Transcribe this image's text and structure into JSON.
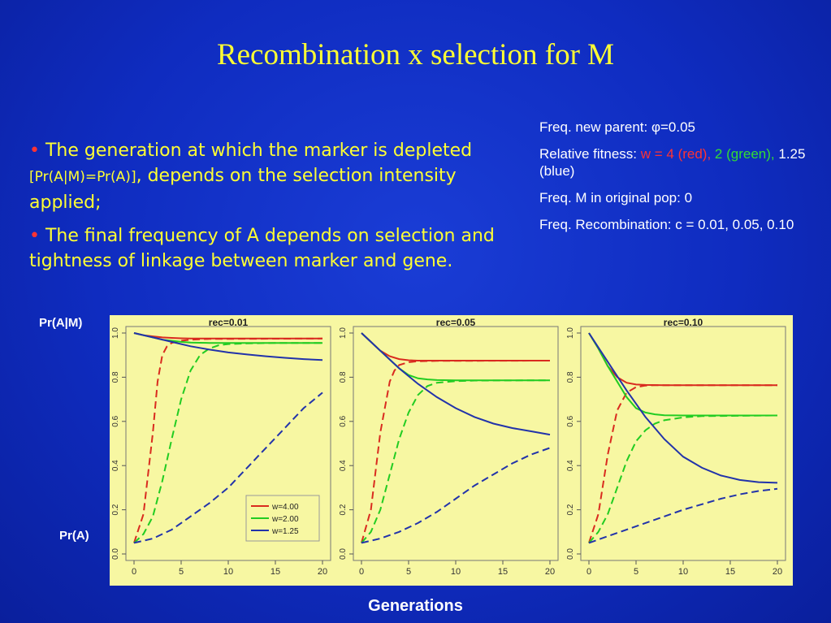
{
  "title": "Recombination x selection for M",
  "bullets": {
    "b1_a": "The generation at which the marker is depleted ",
    "b1_small": "[Pr(A|M)=Pr(A)]",
    "b1_b": ", depends on the selection intensity applied;",
    "b2": "The final frequency of A depends on selection and tightness of linkage between marker and gene.",
    "marker": "•"
  },
  "info": {
    "line1": "Freq. new parent: φ=0.05",
    "line2_a": "Relative fitness:   ",
    "line2_red": "w = 4 (red),",
    "line2_green": "2 (green),",
    "line2_blue": " 1.25 (blue)",
    "line3": "Freq. M in original pop:  0",
    "line4": "Freq. Recombination:  c = 0.01, 0.05, 0.10"
  },
  "labels": {
    "yTop": "Pr(A|M)",
    "yBottom": "Pr(A)",
    "x": "Generations"
  },
  "colors": {
    "background": "#0f2cc0",
    "text": "#ffff33",
    "panel": "#f7f7a2",
    "red": "#d92b1f",
    "green": "#22cc22",
    "blue": "#2233aa"
  },
  "chart_data": [
    {
      "type": "line",
      "title": "rec=0.01",
      "xlim": [
        0,
        20
      ],
      "ylim": [
        0,
        1
      ],
      "xticks": [
        0,
        5,
        10,
        15,
        20
      ],
      "yticks": [
        "0.0",
        "0.2",
        "0.4",
        "0.6",
        "0.8",
        "1.0"
      ],
      "legend": [
        "w=4.00",
        "w=2.00",
        "w=1.25"
      ],
      "series": [
        {
          "name": "w=4.00",
          "color": "red",
          "style": "solid",
          "x": [
            0,
            1,
            2,
            3,
            4,
            5,
            6,
            8,
            10,
            15,
            20
          ],
          "y": [
            1.0,
            0.99,
            0.985,
            0.98,
            0.978,
            0.976,
            0.975,
            0.975,
            0.975,
            0.975,
            0.975
          ]
        },
        {
          "name": "w=4.00",
          "color": "red",
          "style": "dashed",
          "x": [
            0,
            1,
            2,
            2.5,
            3,
            3.5,
            4,
            5,
            6,
            8,
            20
          ],
          "y": [
            0.05,
            0.18,
            0.55,
            0.78,
            0.9,
            0.94,
            0.955,
            0.965,
            0.97,
            0.973,
            0.975
          ]
        },
        {
          "name": "w=2.00",
          "color": "green",
          "style": "solid",
          "x": [
            0,
            1,
            2,
            3,
            4,
            5,
            6,
            7,
            8,
            10,
            15,
            20
          ],
          "y": [
            1.0,
            0.99,
            0.98,
            0.97,
            0.965,
            0.96,
            0.957,
            0.956,
            0.955,
            0.955,
            0.955,
            0.955
          ]
        },
        {
          "name": "w=2.00",
          "color": "green",
          "style": "dashed",
          "x": [
            0,
            1,
            2,
            3,
            4,
            5,
            6,
            7,
            8,
            9,
            10,
            12,
            15,
            20
          ],
          "y": [
            0.05,
            0.09,
            0.17,
            0.33,
            0.52,
            0.7,
            0.83,
            0.9,
            0.93,
            0.945,
            0.95,
            0.953,
            0.955,
            0.955
          ]
        },
        {
          "name": "w=1.25",
          "color": "blue",
          "style": "solid",
          "x": [
            0,
            2,
            4,
            6,
            8,
            10,
            12,
            14,
            16,
            18,
            20
          ],
          "y": [
            1.0,
            0.98,
            0.96,
            0.94,
            0.925,
            0.912,
            0.903,
            0.895,
            0.888,
            0.882,
            0.878
          ]
        },
        {
          "name": "w=1.25",
          "color": "blue",
          "style": "dashed",
          "x": [
            0,
            2,
            4,
            6,
            8,
            10,
            12,
            14,
            16,
            18,
            20
          ],
          "y": [
            0.05,
            0.07,
            0.11,
            0.17,
            0.23,
            0.3,
            0.39,
            0.48,
            0.57,
            0.66,
            0.73
          ]
        }
      ]
    },
    {
      "type": "line",
      "title": "rec=0.05",
      "xlim": [
        0,
        20
      ],
      "ylim": [
        0,
        1
      ],
      "xticks": [
        0,
        5,
        10,
        15,
        20
      ],
      "yticks": [
        "0.0",
        "0.2",
        "0.4",
        "0.6",
        "0.8",
        "1.0"
      ],
      "series": [
        {
          "color": "red",
          "style": "solid",
          "x": [
            0,
            1,
            2,
            3,
            4,
            5,
            6,
            8,
            10,
            20
          ],
          "y": [
            1.0,
            0.96,
            0.92,
            0.895,
            0.882,
            0.877,
            0.875,
            0.875,
            0.875,
            0.875
          ]
        },
        {
          "color": "red",
          "style": "dashed",
          "x": [
            0,
            1,
            2,
            3,
            3.5,
            4,
            5,
            6,
            8,
            20
          ],
          "y": [
            0.05,
            0.2,
            0.55,
            0.78,
            0.83,
            0.855,
            0.868,
            0.872,
            0.874,
            0.875
          ]
        },
        {
          "color": "green",
          "style": "solid",
          "x": [
            0,
            1,
            2,
            3,
            4,
            5,
            6,
            7,
            8,
            10,
            15,
            20
          ],
          "y": [
            1.0,
            0.96,
            0.92,
            0.88,
            0.84,
            0.81,
            0.795,
            0.79,
            0.787,
            0.786,
            0.786,
            0.786
          ]
        },
        {
          "color": "green",
          "style": "dashed",
          "x": [
            0,
            1,
            2,
            3,
            4,
            5,
            6,
            7,
            8,
            10,
            12,
            20
          ],
          "y": [
            0.05,
            0.1,
            0.2,
            0.36,
            0.52,
            0.64,
            0.72,
            0.76,
            0.775,
            0.782,
            0.785,
            0.786
          ]
        },
        {
          "color": "blue",
          "style": "solid",
          "x": [
            0,
            2,
            4,
            6,
            8,
            10,
            12,
            14,
            16,
            18,
            20
          ],
          "y": [
            1.0,
            0.92,
            0.84,
            0.77,
            0.71,
            0.66,
            0.62,
            0.59,
            0.57,
            0.555,
            0.54
          ]
        },
        {
          "color": "blue",
          "style": "dashed",
          "x": [
            0,
            2,
            4,
            6,
            8,
            10,
            12,
            14,
            16,
            18,
            20
          ],
          "y": [
            0.05,
            0.07,
            0.1,
            0.14,
            0.19,
            0.25,
            0.31,
            0.36,
            0.41,
            0.45,
            0.48
          ]
        }
      ]
    },
    {
      "type": "line",
      "title": "rec=0.10",
      "xlim": [
        0,
        20
      ],
      "ylim": [
        0,
        1
      ],
      "xticks": [
        0,
        5,
        10,
        15,
        20
      ],
      "yticks": [
        "0.0",
        "0.2",
        "0.4",
        "0.6",
        "0.8",
        "1.0"
      ],
      "series": [
        {
          "color": "red",
          "style": "solid",
          "x": [
            0,
            1,
            2,
            3,
            4,
            5,
            6,
            8,
            10,
            20
          ],
          "y": [
            1.0,
            0.93,
            0.85,
            0.8,
            0.775,
            0.767,
            0.765,
            0.764,
            0.764,
            0.764
          ]
        },
        {
          "color": "red",
          "style": "dashed",
          "x": [
            0,
            1,
            2,
            3,
            4,
            5,
            6,
            7,
            20
          ],
          "y": [
            0.05,
            0.18,
            0.45,
            0.65,
            0.73,
            0.755,
            0.762,
            0.764,
            0.764
          ]
        },
        {
          "color": "green",
          "style": "solid",
          "x": [
            0,
            1,
            2,
            3,
            4,
            5,
            6,
            7,
            8,
            10,
            15,
            20
          ],
          "y": [
            1.0,
            0.93,
            0.85,
            0.78,
            0.71,
            0.66,
            0.64,
            0.632,
            0.628,
            0.627,
            0.627,
            0.627
          ]
        },
        {
          "color": "green",
          "style": "dashed",
          "x": [
            0,
            1,
            2,
            3,
            4,
            5,
            6,
            7,
            8,
            10,
            12,
            20
          ],
          "y": [
            0.05,
            0.1,
            0.18,
            0.3,
            0.42,
            0.51,
            0.56,
            0.59,
            0.605,
            0.618,
            0.624,
            0.627
          ]
        },
        {
          "color": "blue",
          "style": "solid",
          "x": [
            0,
            2,
            4,
            6,
            8,
            10,
            12,
            14,
            16,
            18,
            20
          ],
          "y": [
            1.0,
            0.87,
            0.74,
            0.62,
            0.52,
            0.44,
            0.39,
            0.355,
            0.335,
            0.325,
            0.322
          ]
        },
        {
          "color": "blue",
          "style": "dashed",
          "x": [
            0,
            2,
            4,
            6,
            8,
            10,
            12,
            14,
            16,
            18,
            20
          ],
          "y": [
            0.05,
            0.08,
            0.11,
            0.14,
            0.17,
            0.2,
            0.225,
            0.25,
            0.27,
            0.285,
            0.295
          ]
        }
      ]
    }
  ]
}
